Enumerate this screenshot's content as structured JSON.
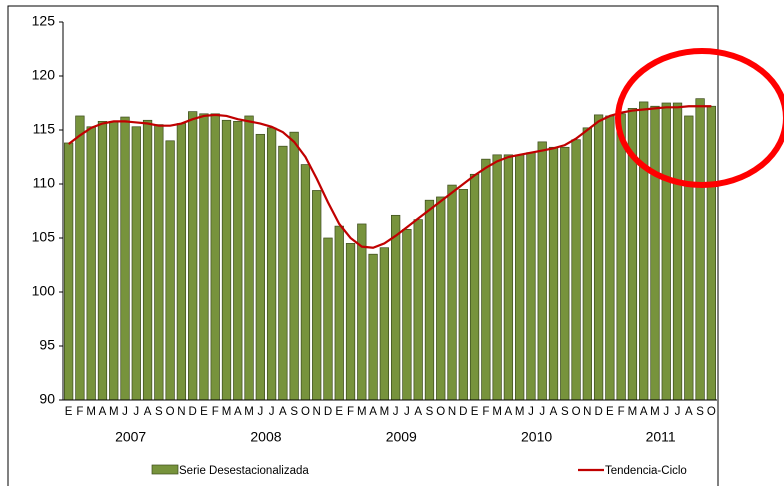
{
  "chart_data": {
    "type": "bar_line",
    "categories": [
      "E",
      "F",
      "M",
      "A",
      "M",
      "J",
      "J",
      "A",
      "S",
      "O",
      "N",
      "D",
      "E",
      "F",
      "M",
      "A",
      "M",
      "J",
      "J",
      "A",
      "S",
      "O",
      "N",
      "D",
      "E",
      "F",
      "M",
      "A",
      "M",
      "J",
      "J",
      "A",
      "S",
      "O",
      "N",
      "D",
      "E",
      "F",
      "M",
      "A",
      "M",
      "J",
      "J",
      "A",
      "S",
      "O",
      "N",
      "D",
      "E",
      "F",
      "M",
      "A",
      "M",
      "J",
      "J",
      "A",
      "S",
      "O"
    ],
    "years": [
      "2007",
      "2008",
      "2009",
      "2010",
      "2011"
    ],
    "series": [
      {
        "name": "Serie Desestacionalizada",
        "kind": "bar",
        "color": "#77933c",
        "values": [
          113.8,
          116.3,
          115.3,
          115.8,
          115.8,
          116.2,
          115.3,
          115.9,
          115.5,
          114.0,
          115.6,
          116.7,
          116.5,
          116.5,
          115.9,
          115.8,
          116.3,
          114.6,
          115.2,
          113.5,
          114.8,
          111.8,
          109.4,
          105.0,
          106.1,
          104.5,
          106.3,
          103.5,
          104.1,
          107.1,
          105.8,
          106.7,
          108.5,
          108.8,
          109.9,
          109.5,
          110.9,
          112.3,
          112.7,
          112.7,
          112.7,
          112.9,
          113.9,
          113.4,
          113.4,
          114.1,
          115.2,
          116.4,
          116.3,
          116.5,
          117.0,
          117.6,
          117.2,
          117.5,
          117.5,
          116.3,
          117.9,
          117.2
        ]
      },
      {
        "name": "Tendencia-Ciclo",
        "kind": "line",
        "color": "#c00000",
        "values": [
          113.7,
          114.5,
          115.2,
          115.6,
          115.8,
          115.8,
          115.7,
          115.6,
          115.4,
          115.4,
          115.6,
          116.0,
          116.3,
          116.4,
          116.3,
          116.0,
          115.8,
          115.6,
          115.3,
          114.8,
          113.9,
          112.5,
          110.5,
          108.3,
          106.3,
          105.0,
          104.2,
          104.1,
          104.5,
          105.2,
          106.0,
          106.8,
          107.6,
          108.4,
          109.2,
          110.0,
          110.8,
          111.5,
          112.1,
          112.5,
          112.7,
          112.9,
          113.1,
          113.3,
          113.6,
          114.2,
          115.0,
          115.8,
          116.3,
          116.6,
          116.8,
          116.9,
          117.0,
          117.1,
          117.1,
          117.2,
          117.2,
          117.2
        ]
      }
    ],
    "ylim": [
      90,
      125
    ],
    "yticks": [
      90,
      95,
      100,
      105,
      110,
      115,
      120,
      125
    ],
    "grid": false
  }
}
